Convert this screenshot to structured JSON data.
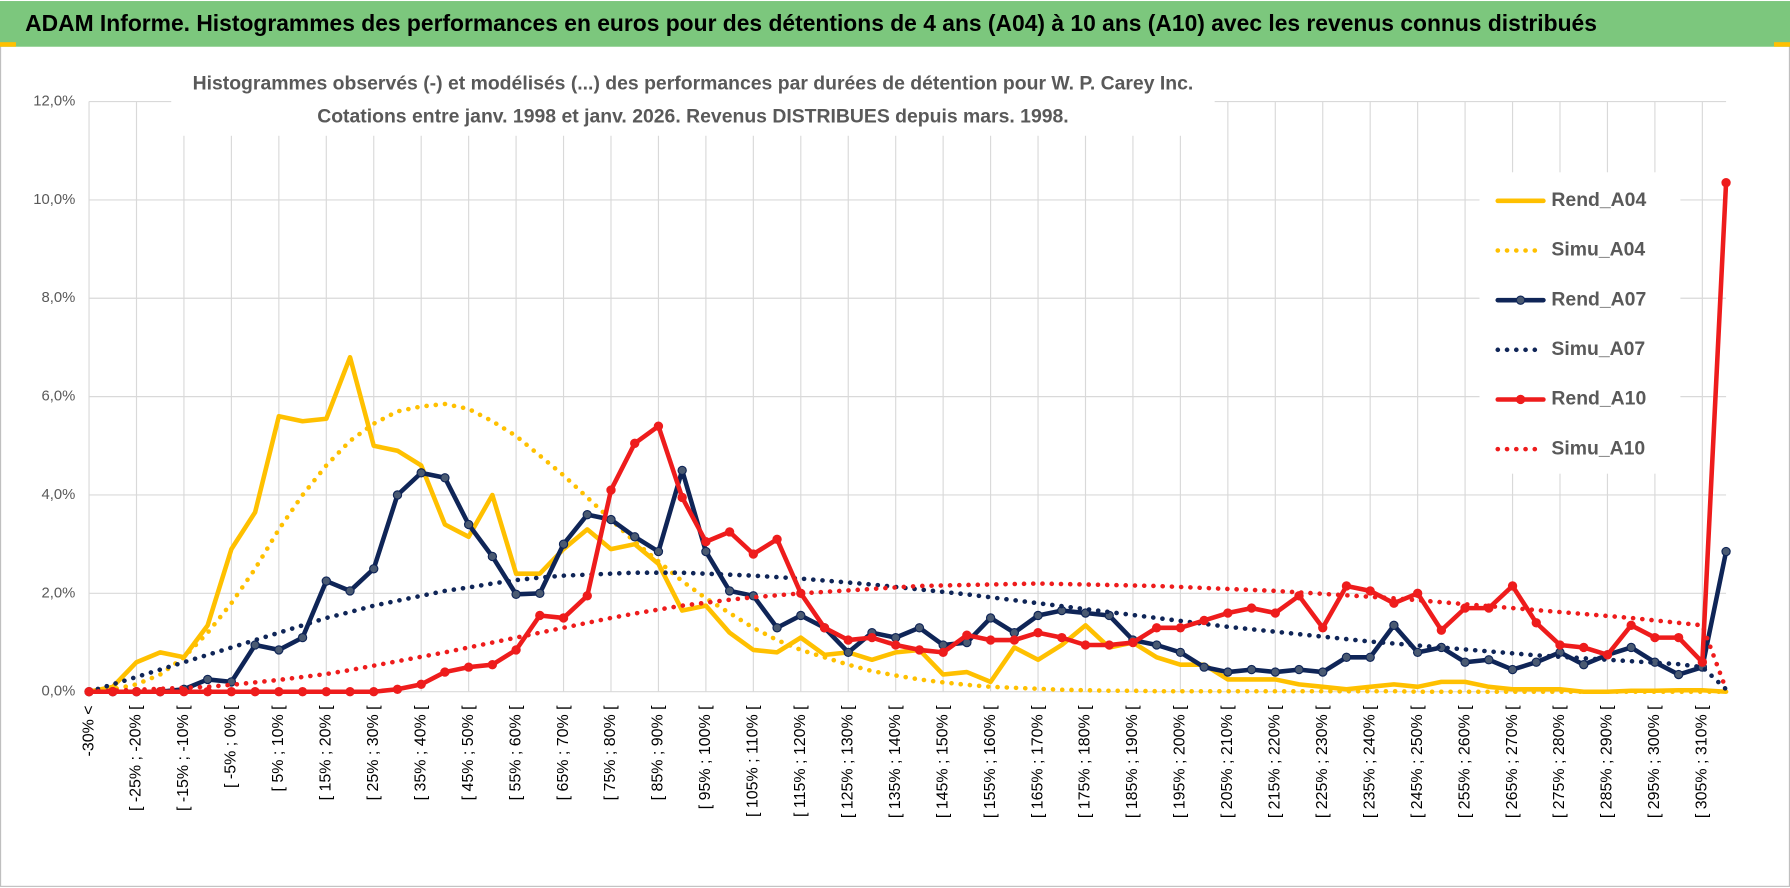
{
  "chart_data": {
    "type": "line",
    "header": "ADAM Informe. Histogrammes des performances en euros pour des détentions de 4 ans (A04) à 10 ans (A10) avec les revenus connus distribués",
    "title": "Histogrammes observés (-) et modélisés (...) des performances par durées de détention pour W. P. Carey Inc.",
    "subtitle": "Cotations entre janv. 1998 et janv. 2026. Revenus DISTRIBUES depuis mars. 1998.",
    "categories": [
      "-30% <",
      null,
      "[ -25% ; -20% [",
      null,
      "[ -15% ; -10% [",
      null,
      "[ -5% ; 0% [",
      null,
      "[ 5% ; 10% [",
      null,
      "[ 15% ; 20% [",
      null,
      "[ 25% ; 30% [",
      null,
      "[ 35% ; 40% [",
      null,
      "[ 45% ; 50% [",
      null,
      "[ 55% ; 60% [",
      null,
      "[ 65% ; 70% [",
      null,
      "[ 75% ; 80% [",
      null,
      "[ 85% ; 90% [",
      null,
      "[ 95% ; 100% [",
      null,
      "[ 105% ; 110% [",
      null,
      "[ 115% ; 120% [",
      null,
      "[ 125% ; 130% [",
      null,
      "[ 135% ; 140% [",
      null,
      "[ 145% ; 150% [",
      null,
      "[ 155% ; 160% [",
      null,
      "[ 165% ; 170% [",
      null,
      "[ 175% ; 180% [",
      null,
      "[ 185% ; 190% [",
      null,
      "[ 195% ; 200% [",
      null,
      "[ 205% ; 210% [",
      null,
      "[ 215% ; 220% [",
      null,
      "[ 225% ; 230% [",
      null,
      "[ 235% ; 240% [",
      null,
      "[ 245% ; 250% [",
      null,
      "[ 255% ; 260% [",
      null,
      "[ 265% ; 270% [",
      null,
      "[ 275% ; 280% [",
      null,
      "[ 285% ; 290% [",
      null,
      "[ 295% ; 300% [",
      null,
      "[ 305% ; 310% [",
      null
    ],
    "series": [
      {
        "name": "Rend_A04",
        "color": "#ffc000",
        "linestyle": "solid",
        "marker": false,
        "values": [
          0,
          0.1,
          0.6,
          0.8,
          0.7,
          1.35,
          2.9,
          3.65,
          5.6,
          5.5,
          5.55,
          6.8,
          5.0,
          4.9,
          4.6,
          3.4,
          3.15,
          4.0,
          2.4,
          2.4,
          2.9,
          3.3,
          2.9,
          3.0,
          2.6,
          1.65,
          1.75,
          1.2,
          0.85,
          0.8,
          1.1,
          0.75,
          0.8,
          0.65,
          0.8,
          0.85,
          0.35,
          0.4,
          0.2,
          0.9,
          0.65,
          0.95,
          1.35,
          0.9,
          1.0,
          0.7,
          0.55,
          0.55,
          0.25,
          0.25,
          0.25,
          0.15,
          0.1,
          0.05,
          0.1,
          0.15,
          0.1,
          0.2,
          0.2,
          0.1,
          0.05,
          0.05,
          0.05,
          0,
          0,
          0.02,
          0.02,
          0.03,
          0.03,
          0
        ]
      },
      {
        "name": "Simu_A04",
        "color": "#ffc000",
        "linestyle": "dotted",
        "marker": false,
        "values": [
          0,
          0.05,
          0.15,
          0.35,
          0.7,
          1.2,
          1.8,
          2.5,
          3.3,
          4.0,
          4.6,
          5.1,
          5.45,
          5.7,
          5.8,
          5.85,
          5.75,
          5.5,
          5.2,
          4.8,
          4.4,
          3.95,
          3.5,
          3.05,
          2.65,
          2.25,
          1.9,
          1.6,
          1.3,
          1.05,
          0.85,
          0.7,
          0.55,
          0.42,
          0.33,
          0.25,
          0.19,
          0.14,
          0.1,
          0.08,
          0.06,
          0.04,
          0.03,
          0.02,
          0.02,
          0.01,
          0.01,
          0.01,
          0.01,
          0.01,
          0.01,
          0.01,
          0.01,
          0.01,
          0.01,
          0.01,
          0,
          0,
          0,
          0,
          0,
          0,
          0,
          0,
          0,
          0,
          0,
          0,
          0,
          0
        ]
      },
      {
        "name": "Rend_A07",
        "color": "#0f2557",
        "linestyle": "solid",
        "marker": true,
        "marker_color": "#4a5a72",
        "values": [
          0,
          0,
          0,
          0,
          0.05,
          0.25,
          0.2,
          0.95,
          0.85,
          1.1,
          2.25,
          2.05,
          2.5,
          4.0,
          4.45,
          4.35,
          3.4,
          2.75,
          1.98,
          2.0,
          3.0,
          3.6,
          3.5,
          3.15,
          2.85,
          4.5,
          2.85,
          2.05,
          1.95,
          1.3,
          1.55,
          1.3,
          0.8,
          1.2,
          1.1,
          1.3,
          0.95,
          1.0,
          1.5,
          1.2,
          1.55,
          1.65,
          1.6,
          1.55,
          1.05,
          0.95,
          0.8,
          0.5,
          0.4,
          0.45,
          0.4,
          0.45,
          0.4,
          0.7,
          0.7,
          1.35,
          0.8,
          0.9,
          0.6,
          0.65,
          0.45,
          0.6,
          0.8,
          0.55,
          0.75,
          0.9,
          0.6,
          0.35,
          0.5,
          2.85
        ]
      },
      {
        "name": "Simu_A07",
        "color": "#0f2557",
        "linestyle": "dotted",
        "marker": false,
        "values": [
          0,
          0.15,
          0.3,
          0.45,
          0.6,
          0.75,
          0.9,
          1.05,
          1.2,
          1.35,
          1.5,
          1.62,
          1.75,
          1.85,
          1.95,
          2.05,
          2.12,
          2.2,
          2.27,
          2.32,
          2.36,
          2.38,
          2.4,
          2.42,
          2.42,
          2.42,
          2.4,
          2.38,
          2.36,
          2.33,
          2.3,
          2.26,
          2.22,
          2.18,
          2.13,
          2.08,
          2.03,
          1.98,
          1.92,
          1.86,
          1.8,
          1.74,
          1.68,
          1.62,
          1.56,
          1.5,
          1.44,
          1.38,
          1.32,
          1.27,
          1.22,
          1.17,
          1.12,
          1.07,
          1.02,
          0.98,
          0.94,
          0.9,
          0.86,
          0.82,
          0.78,
          0.74,
          0.71,
          0.68,
          0.65,
          0.62,
          0.59,
          0.56,
          0.5,
          0.05
        ]
      },
      {
        "name": "Rend_A10",
        "color": "#ee1c1c",
        "linestyle": "solid",
        "marker": true,
        "marker_color": "#ee1c1c",
        "values": [
          0,
          0,
          0,
          0,
          0,
          0,
          0,
          0,
          0,
          0,
          0,
          0,
          0,
          0.05,
          0.15,
          0.4,
          0.5,
          0.55,
          0.85,
          1.55,
          1.5,
          1.95,
          4.1,
          5.05,
          5.4,
          3.95,
          3.05,
          3.25,
          2.8,
          3.1,
          2.0,
          1.3,
          1.05,
          1.1,
          0.95,
          0.85,
          0.8,
          1.15,
          1.05,
          1.05,
          1.2,
          1.1,
          0.95,
          0.95,
          1.0,
          1.3,
          1.3,
          1.45,
          1.6,
          1.7,
          1.6,
          1.95,
          1.3,
          2.15,
          2.05,
          1.8,
          2.0,
          1.25,
          1.7,
          1.7,
          2.15,
          1.4,
          0.95,
          0.9,
          0.75,
          1.35,
          1.1,
          1.1,
          0.6,
          10.35
        ]
      },
      {
        "name": "Simu_A10",
        "color": "#ee1c1c",
        "linestyle": "dotted",
        "marker": false,
        "values": [
          0,
          0.02,
          0.04,
          0.06,
          0.08,
          0.1,
          0.14,
          0.19,
          0.24,
          0.3,
          0.36,
          0.44,
          0.53,
          0.62,
          0.71,
          0.8,
          0.9,
          1.0,
          1.1,
          1.2,
          1.3,
          1.4,
          1.5,
          1.59,
          1.67,
          1.75,
          1.81,
          1.87,
          1.92,
          1.96,
          2.0,
          2.03,
          2.06,
          2.09,
          2.12,
          2.15,
          2.16,
          2.17,
          2.18,
          2.19,
          2.2,
          2.19,
          2.18,
          2.17,
          2.16,
          2.15,
          2.13,
          2.11,
          2.09,
          2.07,
          2.05,
          2.02,
          1.99,
          1.96,
          1.93,
          1.9,
          1.86,
          1.82,
          1.78,
          1.74,
          1.7,
          1.66,
          1.62,
          1.58,
          1.54,
          1.5,
          1.45,
          1.4,
          1.35,
          0.05
        ]
      }
    ],
    "ylim": [
      0,
      12
    ],
    "yticks": [
      {
        "value": 0,
        "label": "0,0%"
      },
      {
        "value": 2,
        "label": "2,0%"
      },
      {
        "value": 4,
        "label": "4,0%"
      },
      {
        "value": 6,
        "label": "6,0%"
      },
      {
        "value": 8,
        "label": "8,0%"
      },
      {
        "value": 10,
        "label": "10,0%"
      },
      {
        "value": 12,
        "label": "12,0%"
      }
    ],
    "grid": true,
    "legend": "right"
  }
}
